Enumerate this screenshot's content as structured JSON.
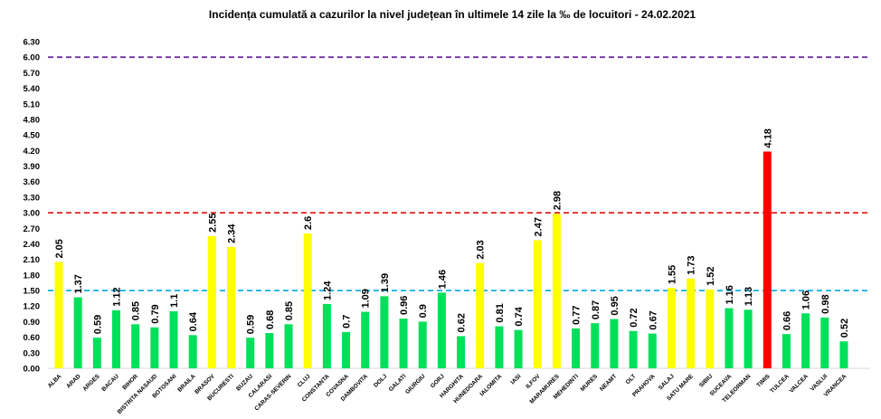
{
  "chart_data": {
    "type": "bar",
    "title": "Incidența cumulată a cazurilor la nivel județean în ultimele 14 zile   la ‰ de locuitori  - 24.02.2021",
    "ylim": [
      0,
      6.3
    ],
    "yticks": [
      "0.00",
      "0.30",
      "0.60",
      "0.90",
      "1.20",
      "1.50",
      "1.80",
      "2.10",
      "2.40",
      "2.70",
      "3.00",
      "3.30",
      "3.60",
      "3.90",
      "4.20",
      "4.50",
      "4.80",
      "5.10",
      "5.40",
      "5.70",
      "6.00",
      "6.30"
    ],
    "grid": false,
    "categories": [
      "ALBA",
      "ARAD",
      "ARGES",
      "BACAU",
      "BIHOR",
      "BISTRITA NASAUD",
      "BOTOSANI",
      "BRAILA",
      "BRASOV",
      "BUCURESTI",
      "BUZAU",
      "CALARASI",
      "CARAS-SEVERIN",
      "CLUJ",
      "CONSTANTA",
      "COVASNA",
      "DAMBOVITA",
      "DOLJ",
      "GALATI",
      "GIURGIU",
      "GORJ",
      "HARGHITA",
      "HUNEDOARA",
      "IALOMITA",
      "IASI",
      "ILFOV",
      "MARAMURES",
      "MEHEDINTI",
      "MURES",
      "NEAMT",
      "OLT",
      "PRAHOVA",
      "SALAJ",
      "SATU MARE",
      "SIBIU",
      "SUCEAVA",
      "TELEORMAN",
      "TIMIS",
      "TULCEA",
      "VALCEA",
      "VASLUI",
      "VRANCEA"
    ],
    "values": [
      2.05,
      1.37,
      0.59,
      1.12,
      0.85,
      0.79,
      1.1,
      0.64,
      2.55,
      2.34,
      0.59,
      0.68,
      0.85,
      2.6,
      1.24,
      0.7,
      1.09,
      1.39,
      0.96,
      0.9,
      1.46,
      0.62,
      2.03,
      0.81,
      0.74,
      2.47,
      2.98,
      0.77,
      0.87,
      0.95,
      0.72,
      0.67,
      1.55,
      1.73,
      1.52,
      1.16,
      1.13,
      4.18,
      0.66,
      1.06,
      0.98,
      0.52
    ],
    "thresholds": [
      {
        "value": 1.5,
        "color": "#1fb4e6",
        "style": "dashed"
      },
      {
        "value": 3.0,
        "color": "#e02020",
        "style": "dashed"
      },
      {
        "value": 6.0,
        "color": "#7030a0",
        "style": "dashed"
      }
    ],
    "colors": {
      "below_1_5": "#00e05a",
      "between_1_5_and_3": "#ffff00",
      "above_3": "#ff0000"
    }
  }
}
